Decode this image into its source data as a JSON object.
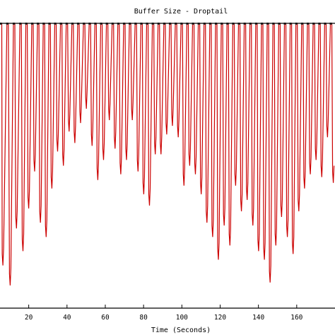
{
  "chart_data": {
    "type": "line",
    "title": "Buffer Size - Droptail",
    "xlabel": "Time (Seconds)",
    "ylabel": "",
    "xlim": [
      5,
      180
    ],
    "ylim": [
      0,
      100
    ],
    "x_ticks": [
      20,
      40,
      60,
      80,
      100,
      120,
      140,
      160
    ],
    "tick_labels": [
      "20",
      "40",
      "60",
      "80",
      "100",
      "120",
      "140",
      "160"
    ],
    "grid": false,
    "legend": "none",
    "ceiling": 100,
    "series_color": "#cc0000",
    "frame_color": "#000000",
    "series": [
      {
        "peaks_x": [
          5.2,
          8.6,
          12.0,
          15.4,
          18.5,
          21.6,
          24.6,
          27.6,
          30.6,
          33.6,
          36.6,
          39.6,
          42.6,
          45.6,
          48.6,
          51.6,
          54.6,
          57.6,
          60.6,
          63.6,
          66.6,
          69.6,
          72.6,
          75.6,
          78.6,
          81.6,
          84.6,
          87.6,
          90.6,
          93.6,
          96.6,
          99.6,
          102.6,
          105.6,
          108.6,
          111.6,
          114.6,
          117.6,
          120.6,
          123.6,
          126.6,
          129.6,
          132.6,
          135.6,
          138.6,
          141.6,
          144.6,
          147.6,
          150.6,
          153.6,
          156.6,
          159.6,
          162.6,
          165.6,
          168.6,
          171.6,
          174.6,
          177.6
        ],
        "troughs_x": [
          6.5,
          10.3,
          13.6,
          17.0,
          20.0,
          23.1,
          26.1,
          29.1,
          32.1,
          35.1,
          38.1,
          41.1,
          44.1,
          47.1,
          50.1,
          53.1,
          56.1,
          59.1,
          62.1,
          65.1,
          68.1,
          71.1,
          74.1,
          77.1,
          80.1,
          83.1,
          86.1,
          89.1,
          92.1,
          95.1,
          98.1,
          101.1,
          104.1,
          107.1,
          110.1,
          113.1,
          116.1,
          119.1,
          122.1,
          125.1,
          128.1,
          131.1,
          134.1,
          137.1,
          140.1,
          143.1,
          146.1,
          149.1,
          152.1,
          155.1,
          158.1,
          161.1,
          164.1,
          167.1,
          170.1,
          173.1,
          176.1,
          179.1
        ],
        "troughs_y": [
          15,
          8,
          28,
          20,
          35,
          48,
          30,
          25,
          42,
          55,
          50,
          62,
          58,
          65,
          70,
          57,
          45,
          52,
          66,
          56,
          47,
          52,
          66,
          48,
          40,
          36,
          54,
          54,
          61,
          64,
          60,
          43,
          50,
          47,
          40,
          30,
          25,
          17,
          29,
          22,
          43,
          34,
          38,
          29,
          20,
          17,
          9,
          22,
          32,
          25,
          19,
          34,
          42,
          47,
          52,
          46,
          60,
          44
        ]
      }
    ]
  }
}
